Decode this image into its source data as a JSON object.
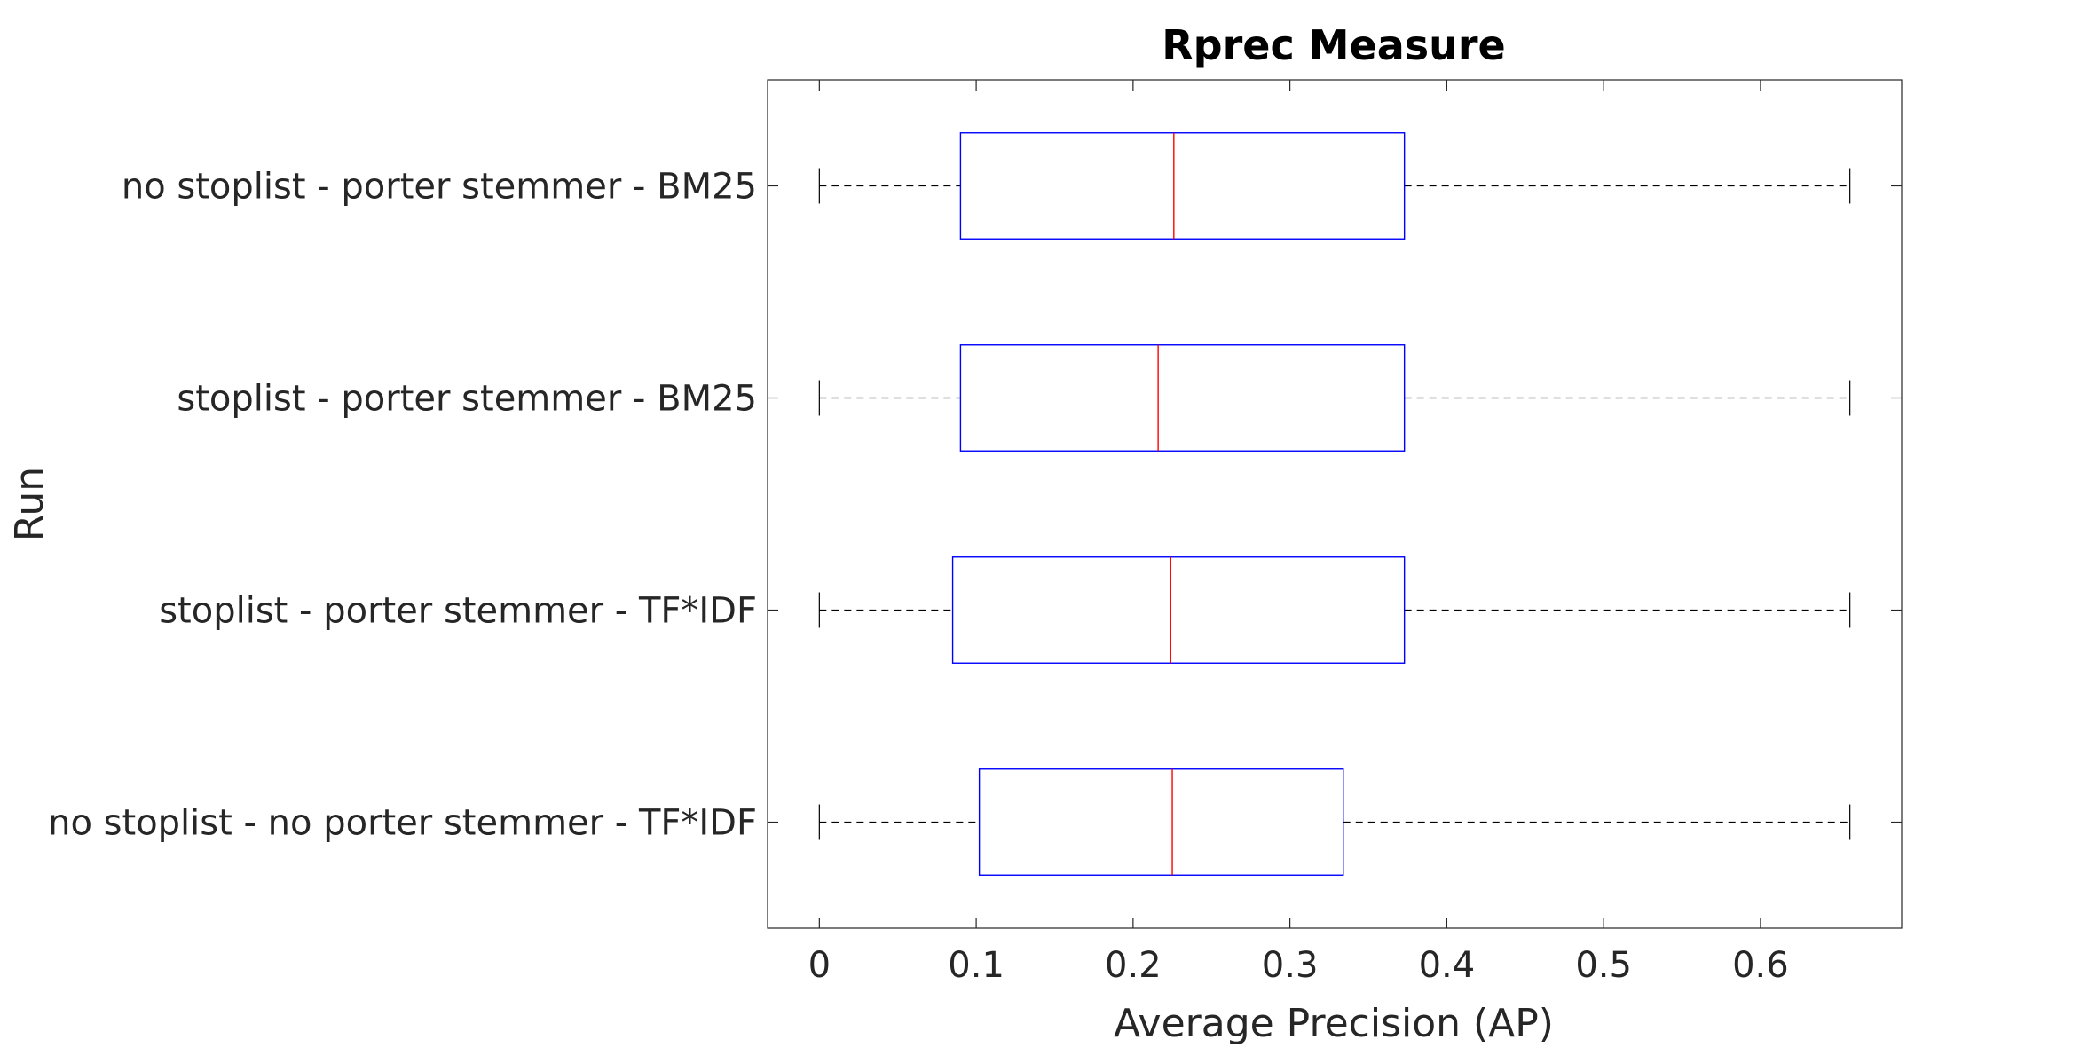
{
  "chart_data": {
    "type": "boxplot",
    "title": "Rprec Measure",
    "xlabel": "Average Precision (AP)",
    "ylabel": "Run",
    "xlim": [
      -0.033,
      0.69
    ],
    "xticks": [
      0,
      0.1,
      0.2,
      0.3,
      0.4,
      0.5,
      0.6
    ],
    "xtick_labels": [
      "0",
      "0.1",
      "0.2",
      "0.3",
      "0.4",
      "0.5",
      "0.6"
    ],
    "orientation": "horizontal",
    "grid": false,
    "colors": {
      "box": "#0000FF",
      "median": "#FF0000",
      "whisker": "#000000",
      "axis": "#262626"
    },
    "categories": [
      "no stoplist - porter stemmer - BM25",
      "stoplist - porter stemmer - BM25",
      "stoplist - porter stemmer - TF*IDF",
      "no stoplist - no porter stemmer - TF*IDF"
    ],
    "boxes": [
      {
        "min": 0,
        "q1": 0.09,
        "median": 0.226,
        "q3": 0.373,
        "max": 0.657
      },
      {
        "min": 0,
        "q1": 0.09,
        "median": 0.216,
        "q3": 0.373,
        "max": 0.657
      },
      {
        "min": 0,
        "q1": 0.085,
        "median": 0.224,
        "q3": 0.373,
        "max": 0.657
      },
      {
        "min": 0,
        "q1": 0.102,
        "median": 0.225,
        "q3": 0.334,
        "max": 0.657
      }
    ]
  }
}
